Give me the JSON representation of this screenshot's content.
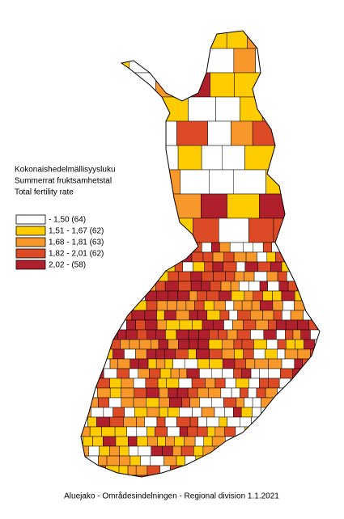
{
  "legend": {
    "title_lines": [
      "Kokonaishedelmällisyysluku",
      "Summerrat fruktsamhetstal",
      "Total fertility rate"
    ],
    "items": [
      {
        "label": "- 1,50 (64)",
        "color": "#ffffff"
      },
      {
        "label": "1,51 - 1,67 (62)",
        "color": "#ffcc00"
      },
      {
        "label": "1,68 - 1,81 (63)",
        "color": "#f8982a"
      },
      {
        "label": "1,82 - 2,01 (62)",
        "color": "#dd4b26"
      },
      {
        "label": "2,02 -     (58)",
        "color": "#b0202c"
      }
    ]
  },
  "caption": "Aluejako - Områdesindelningen - Regional division  1.1.2021"
}
